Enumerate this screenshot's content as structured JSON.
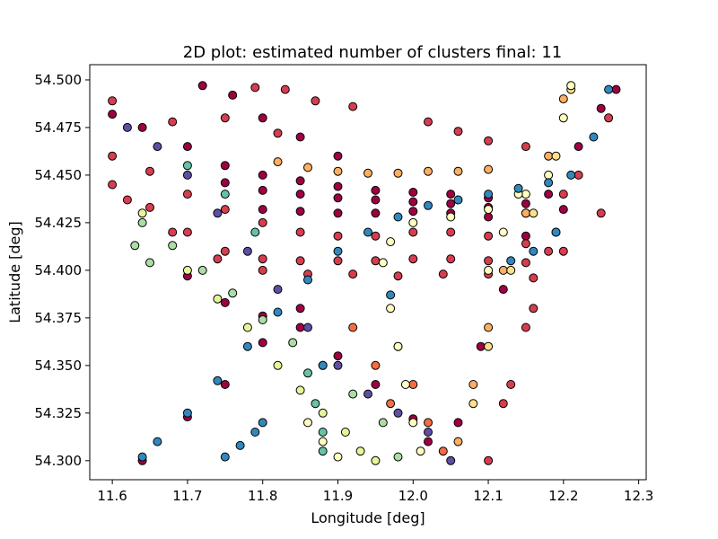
{
  "chart_data": {
    "type": "scatter",
    "title": "2D plot: estimated number of clusters final: 11",
    "xlabel": "Longitude [deg]",
    "ylabel": "Latitude [deg]",
    "xlim": [
      11.57,
      12.31
    ],
    "ylim": [
      54.29,
      54.508
    ],
    "x_ticks": [
      11.6,
      11.7,
      11.8,
      11.9,
      12.0,
      12.1,
      12.2,
      12.3
    ],
    "x_tick_labels": [
      "11.6",
      "11.7",
      "11.8",
      "11.9",
      "12.0",
      "12.1",
      "12.2",
      "12.3"
    ],
    "y_ticks": [
      54.3,
      54.325,
      54.35,
      54.375,
      54.4,
      54.425,
      54.45,
      54.475,
      54.5
    ],
    "y_tick_labels": [
      "54.300",
      "54.325",
      "54.350",
      "54.375",
      "54.400",
      "54.425",
      "54.450",
      "54.475",
      "54.500"
    ],
    "grid": false,
    "legend": "none",
    "marker_edge_color": "#000000",
    "series": [
      {
        "color": "#9e0142",
        "values": [
          [
            11.6,
            54.482
          ],
          [
            11.64,
            54.475
          ],
          [
            11.7,
            54.465
          ],
          [
            11.75,
            54.455
          ],
          [
            11.8,
            54.45
          ],
          [
            11.85,
            54.447
          ],
          [
            11.9,
            54.444
          ],
          [
            11.95,
            54.442
          ],
          [
            12.0,
            54.441
          ],
          [
            12.05,
            54.44
          ],
          [
            12.1,
            54.438
          ],
          [
            12.15,
            54.435
          ],
          [
            12.2,
            54.432
          ],
          [
            11.75,
            54.446
          ],
          [
            11.8,
            54.442
          ],
          [
            11.85,
            54.44
          ],
          [
            11.9,
            54.438
          ],
          [
            11.95,
            54.437
          ],
          [
            12.0,
            54.436
          ],
          [
            12.05,
            54.435
          ],
          [
            12.1,
            54.433
          ],
          [
            12.15,
            54.43
          ],
          [
            11.8,
            54.432
          ],
          [
            11.85,
            54.431
          ],
          [
            11.9,
            54.43
          ],
          [
            11.95,
            54.43
          ],
          [
            12.0,
            54.431
          ],
          [
            12.05,
            54.43
          ],
          [
            12.1,
            54.428
          ],
          [
            11.7,
            54.397
          ],
          [
            11.75,
            54.383
          ],
          [
            11.8,
            54.376
          ],
          [
            11.85,
            54.37
          ],
          [
            11.9,
            54.355
          ],
          [
            11.95,
            54.34
          ],
          [
            12.0,
            54.322
          ],
          [
            12.02,
            54.31
          ],
          [
            11.64,
            54.3
          ],
          [
            11.7,
            54.323
          ],
          [
            11.75,
            54.34
          ],
          [
            11.8,
            54.362
          ],
          [
            11.85,
            54.38
          ],
          [
            12.06,
            54.32
          ],
          [
            12.09,
            54.36
          ],
          [
            12.12,
            54.39
          ],
          [
            12.15,
            54.418
          ],
          [
            12.18,
            54.44
          ],
          [
            12.22,
            54.465
          ],
          [
            12.25,
            54.485
          ],
          [
            12.27,
            54.495
          ],
          [
            11.72,
            54.497
          ],
          [
            11.76,
            54.492
          ],
          [
            11.8,
            54.48
          ],
          [
            11.85,
            54.47
          ],
          [
            11.9,
            54.46
          ]
        ]
      },
      {
        "color": "#d53e4f",
        "values": [
          [
            11.6,
            54.46
          ],
          [
            11.65,
            54.452
          ],
          [
            11.7,
            54.44
          ],
          [
            11.75,
            54.432
          ],
          [
            11.8,
            54.425
          ],
          [
            11.85,
            54.42
          ],
          [
            11.9,
            54.418
          ],
          [
            11.95,
            54.418
          ],
          [
            12.0,
            54.42
          ],
          [
            12.05,
            54.42
          ],
          [
            12.1,
            54.418
          ],
          [
            12.15,
            54.414
          ],
          [
            12.2,
            54.41
          ],
          [
            12.25,
            54.43
          ],
          [
            11.6,
            54.445
          ],
          [
            11.65,
            54.433
          ],
          [
            11.7,
            54.42
          ],
          [
            11.75,
            54.41
          ],
          [
            11.8,
            54.406
          ],
          [
            11.85,
            54.405
          ],
          [
            11.9,
            54.405
          ],
          [
            11.95,
            54.405
          ],
          [
            12.0,
            54.406
          ],
          [
            12.05,
            54.406
          ],
          [
            12.1,
            54.405
          ],
          [
            12.15,
            54.404
          ],
          [
            11.62,
            54.437
          ],
          [
            11.68,
            54.42
          ],
          [
            11.74,
            54.406
          ],
          [
            11.8,
            54.4
          ],
          [
            11.86,
            54.398
          ],
          [
            11.92,
            54.398
          ],
          [
            11.98,
            54.397
          ],
          [
            12.04,
            54.398
          ],
          [
            12.1,
            54.398
          ],
          [
            12.16,
            54.396
          ],
          [
            11.6,
            54.489
          ],
          [
            11.68,
            54.478
          ],
          [
            11.75,
            54.48
          ],
          [
            11.82,
            54.472
          ],
          [
            11.87,
            54.489
          ],
          [
            11.92,
            54.486
          ],
          [
            11.79,
            54.496
          ],
          [
            11.83,
            54.495
          ],
          [
            12.02,
            54.478
          ],
          [
            12.06,
            54.473
          ],
          [
            12.1,
            54.468
          ],
          [
            12.15,
            54.465
          ],
          [
            12.1,
            54.3
          ],
          [
            12.13,
            54.34
          ],
          [
            12.16,
            54.38
          ],
          [
            12.19,
            54.42
          ],
          [
            12.22,
            54.45
          ],
          [
            12.26,
            54.48
          ],
          [
            12.12,
            54.33
          ],
          [
            12.15,
            54.37
          ],
          [
            12.18,
            54.41
          ],
          [
            12.2,
            54.44
          ]
        ]
      },
      {
        "color": "#f46d43",
        "values": [
          [
            11.98,
            54.36
          ],
          [
            12.0,
            54.34
          ],
          [
            12.02,
            54.32
          ],
          [
            12.04,
            54.305
          ],
          [
            11.92,
            54.37
          ],
          [
            11.95,
            54.35
          ],
          [
            11.97,
            54.33
          ]
        ]
      },
      {
        "color": "#fdae61",
        "values": [
          [
            11.82,
            54.457
          ],
          [
            11.86,
            54.454
          ],
          [
            11.9,
            54.452
          ],
          [
            11.94,
            54.451
          ],
          [
            11.98,
            54.451
          ],
          [
            12.02,
            54.452
          ],
          [
            12.06,
            54.452
          ],
          [
            12.1,
            54.453
          ],
          [
            12.06,
            54.31
          ],
          [
            12.08,
            54.34
          ],
          [
            12.1,
            54.37
          ],
          [
            12.12,
            54.4
          ],
          [
            12.15,
            54.43
          ],
          [
            12.18,
            54.46
          ],
          [
            12.2,
            54.49
          ]
        ]
      },
      {
        "color": "#fee08b",
        "values": [
          [
            12.08,
            54.33
          ],
          [
            12.1,
            54.36
          ],
          [
            12.13,
            54.4
          ],
          [
            12.16,
            54.43
          ],
          [
            12.19,
            54.46
          ],
          [
            12.21,
            54.495
          ]
        ]
      },
      {
        "color": "#ffffbf",
        "values": [
          [
            11.96,
            54.404
          ],
          [
            11.97,
            54.38
          ],
          [
            11.98,
            54.36
          ],
          [
            11.99,
            54.34
          ],
          [
            12.0,
            54.32
          ],
          [
            12.01,
            54.305
          ],
          [
            11.97,
            54.415
          ],
          [
            12.0,
            54.425
          ],
          [
            12.05,
            54.428
          ],
          [
            12.1,
            54.432
          ],
          [
            12.15,
            54.44
          ],
          [
            12.18,
            54.45
          ],
          [
            12.2,
            54.48
          ],
          [
            12.21,
            54.497
          ],
          [
            12.1,
            54.4
          ],
          [
            12.12,
            54.42
          ],
          [
            12.14,
            54.44
          ],
          [
            11.86,
            54.32
          ],
          [
            11.88,
            54.31
          ],
          [
            11.9,
            54.302
          ]
        ]
      },
      {
        "color": "#e6f598",
        "values": [
          [
            11.64,
            54.43
          ],
          [
            11.7,
            54.4
          ],
          [
            11.74,
            54.385
          ],
          [
            11.78,
            54.37
          ],
          [
            11.82,
            54.35
          ],
          [
            11.85,
            54.337
          ],
          [
            11.88,
            54.325
          ],
          [
            11.91,
            54.315
          ],
          [
            11.93,
            54.305
          ],
          [
            11.95,
            54.3
          ]
        ]
      },
      {
        "color": "#abdda4",
        "values": [
          [
            11.64,
            54.425
          ],
          [
            11.68,
            54.413
          ],
          [
            11.72,
            54.4
          ],
          [
            11.76,
            54.388
          ],
          [
            11.8,
            54.374
          ],
          [
            11.84,
            54.362
          ],
          [
            11.88,
            54.35
          ],
          [
            11.92,
            54.335
          ],
          [
            11.96,
            54.32
          ],
          [
            11.98,
            54.302
          ],
          [
            11.63,
            54.413
          ],
          [
            11.65,
            54.404
          ]
        ]
      },
      {
        "color": "#66c2a5",
        "values": [
          [
            11.7,
            54.455
          ],
          [
            11.75,
            54.44
          ],
          [
            11.79,
            54.42
          ],
          [
            11.86,
            54.346
          ],
          [
            11.87,
            54.33
          ],
          [
            11.88,
            54.315
          ],
          [
            11.88,
            54.305
          ]
        ]
      },
      {
        "color": "#3288bd",
        "values": [
          [
            11.64,
            54.302
          ],
          [
            11.66,
            54.31
          ],
          [
            11.7,
            54.325
          ],
          [
            11.74,
            54.342
          ],
          [
            11.78,
            54.36
          ],
          [
            11.82,
            54.378
          ],
          [
            11.86,
            54.395
          ],
          [
            11.9,
            54.41
          ],
          [
            11.94,
            54.42
          ],
          [
            11.98,
            54.428
          ],
          [
            12.02,
            54.434
          ],
          [
            12.06,
            54.437
          ],
          [
            12.1,
            54.44
          ],
          [
            12.14,
            54.443
          ],
          [
            12.18,
            54.446
          ],
          [
            12.21,
            54.45
          ],
          [
            12.24,
            54.47
          ],
          [
            12.26,
            54.495
          ],
          [
            11.75,
            54.302
          ],
          [
            11.77,
            54.308
          ],
          [
            11.79,
            54.315
          ],
          [
            11.8,
            54.32
          ],
          [
            12.13,
            54.405
          ],
          [
            12.16,
            54.41
          ],
          [
            12.19,
            54.42
          ],
          [
            11.97,
            54.387
          ],
          [
            11.88,
            54.35
          ]
        ]
      },
      {
        "color": "#5e4fa2",
        "values": [
          [
            11.62,
            54.475
          ],
          [
            11.66,
            54.465
          ],
          [
            11.7,
            54.45
          ],
          [
            11.74,
            54.43
          ],
          [
            11.78,
            54.41
          ],
          [
            11.82,
            54.39
          ],
          [
            11.86,
            54.37
          ],
          [
            11.9,
            54.35
          ],
          [
            11.94,
            54.335
          ],
          [
            11.98,
            54.325
          ],
          [
            12.02,
            54.315
          ],
          [
            12.05,
            54.3
          ]
        ]
      }
    ]
  }
}
